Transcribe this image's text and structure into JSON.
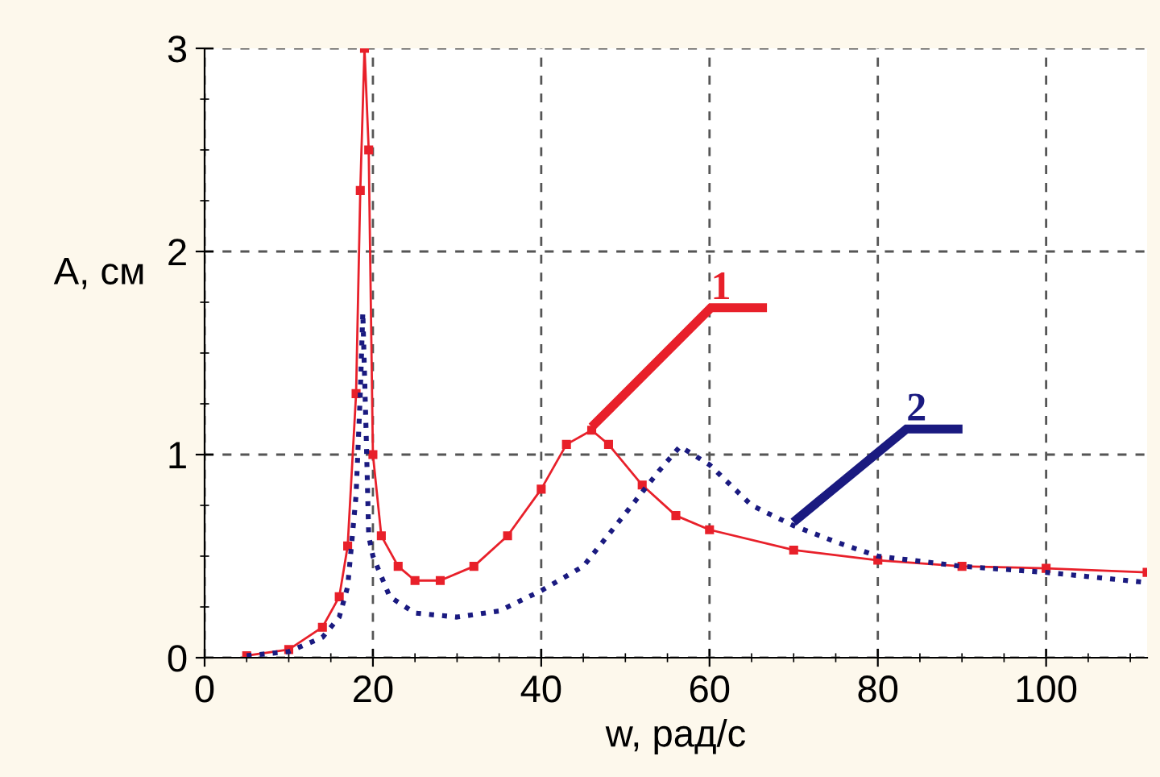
{
  "chart_data": {
    "type": "line",
    "xlabel": "w, рад/с",
    "ylabel": "A, см",
    "xlim": [
      0,
      112
    ],
    "ylim": [
      0,
      3
    ],
    "xticks": [
      0,
      20,
      40,
      60,
      80,
      100
    ],
    "yticks": [
      0,
      1,
      2,
      3
    ],
    "grid": true,
    "legend": false,
    "series": [
      {
        "name": "1",
        "color": "#e8202a",
        "marker": "square",
        "line_style": "solid",
        "x": [
          5,
          10,
          14,
          16,
          17,
          18,
          18.5,
          19,
          19.5,
          20,
          21,
          23,
          25,
          28,
          32,
          36,
          40,
          43,
          46,
          48,
          52,
          56,
          60,
          70,
          80,
          90,
          100,
          112
        ],
        "values": [
          0.01,
          0.04,
          0.15,
          0.3,
          0.55,
          1.3,
          2.3,
          3.0,
          2.5,
          1.0,
          0.6,
          0.45,
          0.38,
          0.38,
          0.45,
          0.6,
          0.83,
          1.05,
          1.12,
          1.05,
          0.85,
          0.7,
          0.63,
          0.53,
          0.48,
          0.45,
          0.44,
          0.42
        ]
      },
      {
        "name": "2",
        "color": "#1a1a80",
        "marker": "none",
        "line_style": "dotted",
        "x": [
          5,
          10,
          14,
          16,
          17,
          18,
          18.5,
          18.8,
          19.2,
          19.5,
          20,
          22,
          25,
          30,
          35,
          40,
          45,
          50,
          54,
          56.5,
          60,
          65,
          70,
          75,
          80,
          90,
          100,
          112
        ],
        "values": [
          0.01,
          0.03,
          0.1,
          0.2,
          0.35,
          0.8,
          1.3,
          1.7,
          1.1,
          0.6,
          0.5,
          0.3,
          0.22,
          0.2,
          0.23,
          0.33,
          0.45,
          0.71,
          0.92,
          1.04,
          0.95,
          0.75,
          0.65,
          0.57,
          0.5,
          0.45,
          0.42,
          0.37
        ]
      }
    ]
  }
}
